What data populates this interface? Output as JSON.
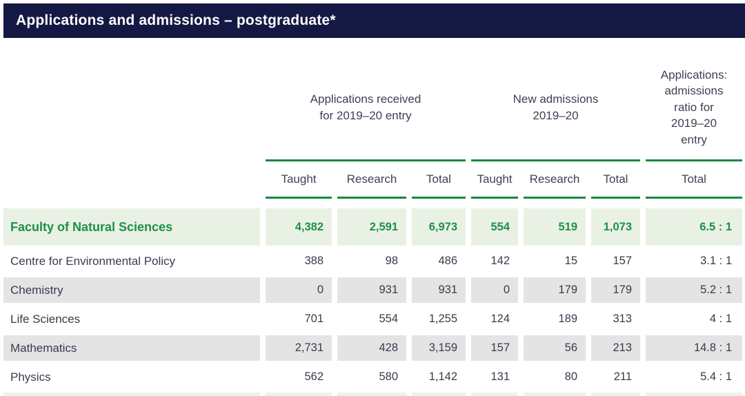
{
  "title": "Applications and admissions – postgraduate*",
  "colors": {
    "navy": "#131942",
    "green-line": "#118a3e",
    "green-text": "#1d9147",
    "highlight": "#e9f1e5",
    "shaded": "#e4e4e5"
  },
  "table": {
    "groups": {
      "applications": "Applications received\nfor 2019–20 entry",
      "admissions": "New admissions\n2019–20",
      "ratio": "Applications:\nadmissions\nratio for\n2019–20\nentry"
    },
    "subheaders": {
      "app_taught": "Taught",
      "app_research": "Research",
      "app_total": "Total",
      "adm_taught": "Taught",
      "adm_research": "Research",
      "adm_total": "Total",
      "ratio_total": "Total"
    },
    "rows": [
      {
        "label": "Faculty of Natural Sciences",
        "style": "highlight",
        "values": [
          "4,382",
          "2,591",
          "6,973",
          "554",
          "519",
          "1,073",
          "6.5 : 1"
        ]
      },
      {
        "label": "Centre for Environmental Policy",
        "style": "plain",
        "values": [
          "388",
          "98",
          "486",
          "142",
          "15",
          "157",
          "3.1 : 1"
        ]
      },
      {
        "label": "Chemistry",
        "style": "shaded",
        "values": [
          "0",
          "931",
          "931",
          "0",
          "179",
          "179",
          "5.2 : 1"
        ]
      },
      {
        "label": "Life Sciences",
        "style": "plain",
        "values": [
          "701",
          "554",
          "1,255",
          "124",
          "189",
          "313",
          "4 : 1"
        ]
      },
      {
        "label": "Mathematics",
        "style": "shaded",
        "values": [
          "2,731",
          "428",
          "3,159",
          "157",
          "56",
          "213",
          "14.8 : 1"
        ]
      },
      {
        "label": "Physics",
        "style": "plain",
        "values": [
          "562",
          "580",
          "1,142",
          "131",
          "80",
          "211",
          "5.4 : 1"
        ]
      }
    ]
  }
}
